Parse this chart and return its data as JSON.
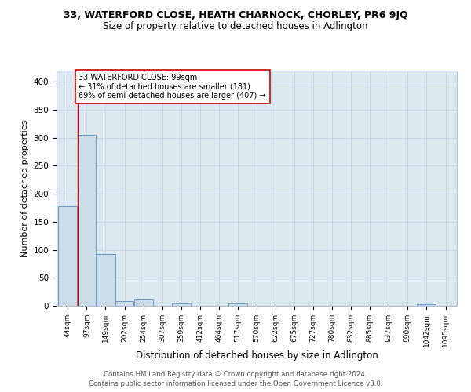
{
  "title": "33, WATERFORD CLOSE, HEATH CHARNOCK, CHORLEY, PR6 9JQ",
  "subtitle": "Size of property relative to detached houses in Adlington",
  "xlabel": "Distribution of detached houses by size in Adlington",
  "ylabel": "Number of detached properties",
  "bar_edges": [
    44,
    97,
    149,
    202,
    254,
    307,
    359,
    412,
    464,
    517,
    570,
    622,
    675,
    727,
    780,
    832,
    885,
    937,
    990,
    1042,
    1095
  ],
  "bar_heights": [
    178,
    305,
    93,
    9,
    11,
    0,
    4,
    0,
    0,
    4,
    0,
    0,
    0,
    0,
    0,
    0,
    0,
    0,
    0,
    3,
    0
  ],
  "bar_color": "#ccdce8",
  "bar_edge_color": "#6699bb",
  "property_line_x": 99,
  "property_line_color": "#cc0000",
  "annotation_text": "33 WATERFORD CLOSE: 99sqm\n← 31% of detached houses are smaller (181)\n69% of semi-detached houses are larger (407) →",
  "annotation_box_color": "#ffffff",
  "annotation_box_edge": "#cc0000",
  "ylim": [
    0,
    420
  ],
  "yticks": [
    0,
    50,
    100,
    150,
    200,
    250,
    300,
    350,
    400
  ],
  "background_color": "#dce8f0",
  "footnote1": "Contains HM Land Registry data © Crown copyright and database right 2024.",
  "footnote2": "Contains public sector information licensed under the Open Government Licence v3.0."
}
